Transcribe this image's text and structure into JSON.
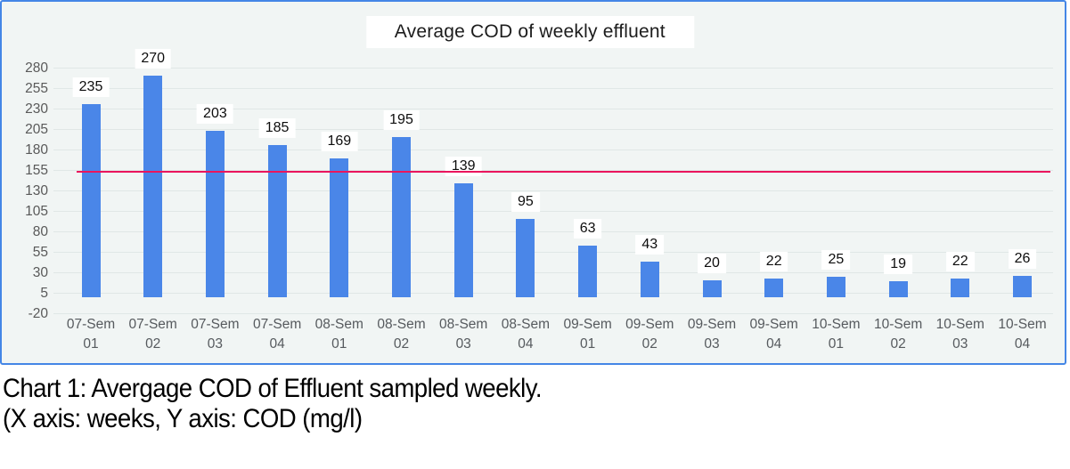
{
  "chart_data": {
    "type": "bar",
    "title": "Average COD of weekly effluent",
    "categories": [
      "07-Sem 01",
      "07-Sem 02",
      "07-Sem 03",
      "07-Sem 04",
      "08-Sem 01",
      "08-Sem 02",
      "08-Sem 03",
      "08-Sem 04",
      "09-Sem 01",
      "09-Sem 02",
      "09-Sem 03",
      "09-Sem 04",
      "10-Sem 01",
      "10-Sem 02",
      "10-Sem 03",
      "10-Sem 04"
    ],
    "values": [
      235,
      270,
      203,
      185,
      169,
      195,
      139,
      95,
      63,
      43,
      20,
      22,
      25,
      19,
      22,
      26
    ],
    "data_labels": [
      "235",
      "270",
      "203",
      "185",
      "169",
      "195",
      "139",
      "95",
      "63",
      "43",
      "20",
      "22",
      "25",
      "19",
      "22",
      "26"
    ],
    "y_ticks": [
      280,
      255,
      230,
      205,
      180,
      155,
      130,
      105,
      80,
      55,
      30,
      5,
      -20
    ],
    "ylim": [
      -20,
      280
    ],
    "xlabel": "weeks",
    "ylabel": "COD (mg/l)",
    "legend": "none",
    "grid": "horizontal",
    "bar_color": "#4a86e8",
    "grid_color": "#e0e7e6",
    "plot_background": "#f1f5f4",
    "border_color": "#4486e6",
    "data_label_background": "#ffffff",
    "reference_line": {
      "value": 153,
      "color": "#ea155d"
    }
  },
  "caption": {
    "line1": "Chart 1: Avergage COD of Effluent sampled weekly.",
    "line2": "(X axis: weeks, Y axis: COD (mg/l)"
  }
}
